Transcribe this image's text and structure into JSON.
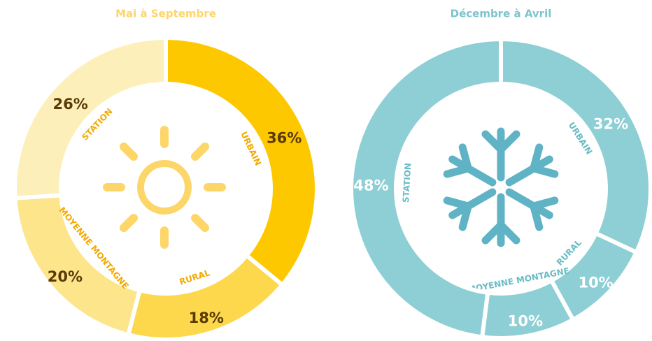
{
  "chart_data": [
    {
      "type": "pie",
      "title": "Mai à Septembre",
      "categories": [
        "URBAIN",
        "RURAL",
        "MOYENNE MONTAGNE",
        "STATION"
      ],
      "values": [
        36,
        18,
        20,
        26
      ],
      "value_labels": [
        "36%",
        "18%",
        "20%",
        "26%"
      ],
      "colors": [
        "#fdc800",
        "#fdd84c",
        "#fde58c",
        "#fdefb9"
      ]
    },
    {
      "type": "pie",
      "title": "Décembre à Avril",
      "categories": [
        "URBAIN",
        "RURAL",
        "MOYENNE MONTAGNE",
        "STATION"
      ],
      "values": [
        32,
        10,
        10,
        48
      ],
      "value_labels": [
        "32%",
        "10%",
        "10%",
        "48%"
      ],
      "colors": [
        "#8dcfd4",
        "#8dcfd4",
        "#8dcfd4",
        "#8dcfd4"
      ]
    }
  ]
}
